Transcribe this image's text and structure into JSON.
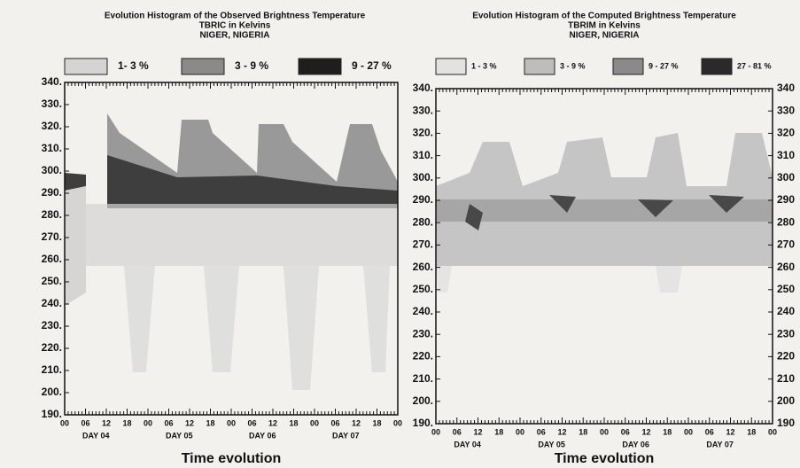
{
  "chart_data": [
    {
      "type": "histogram2d",
      "title": "Evolution Histogram of the Observed Brightness Temperature",
      "subtitle": "TBRIC in Kelvins",
      "location": "NIGER, NIGERIA",
      "legend": [
        {
          "label": "1- 3 %",
          "color": "#d4d4d4"
        },
        {
          "label": "3 - 9 %",
          "color": "#8a8a8a"
        },
        {
          "label": "9 - 27 %",
          "color": "#1e1e1e"
        }
      ],
      "categories": [
        "00",
        "06",
        "12",
        "18",
        "00",
        "06",
        "12",
        "18",
        "00",
        "06",
        "12",
        "18",
        "00",
        "06",
        "12",
        "18",
        "00"
      ],
      "day_labels": [
        "DAY 04",
        "DAY 05",
        "DAY 06",
        "DAY 07"
      ],
      "xlabel": "Time evolution",
      "ylim": [
        190,
        340
      ],
      "yticks": [
        {
          "value": 190,
          "label": "190."
        },
        {
          "value": 200,
          "label": "200."
        },
        {
          "value": 210,
          "label": "210."
        },
        {
          "value": 220,
          "label": "220."
        },
        {
          "value": 230,
          "label": "230."
        },
        {
          "value": 240,
          "label": "240."
        },
        {
          "value": 250,
          "label": "250."
        },
        {
          "value": 260,
          "label": "260."
        },
        {
          "value": 270,
          "label": "270."
        },
        {
          "value": 280,
          "label": "280."
        },
        {
          "value": 290,
          "label": "290."
        },
        {
          "value": 300,
          "label": "300."
        },
        {
          "value": 310,
          "label": "310."
        },
        {
          "value": 320,
          "label": "320."
        },
        {
          "value": 330,
          "label": "330."
        },
        {
          "value": 340,
          "label": "340."
        }
      ]
    },
    {
      "type": "histogram2d",
      "title": "Evolution Histogram of the Computed Brightness Temperature",
      "subtitle": "TBRIM in Kelvins",
      "location": "NIGER, NIGERIA",
      "legend": [
        {
          "label": "1 - 3 %",
          "color": "#e2e2e2"
        },
        {
          "label": "3 - 9 %",
          "color": "#bdbdbd"
        },
        {
          "label": "9 - 27 %",
          "color": "#8a8a8a"
        },
        {
          "label": "27 - 81 %",
          "color": "#2a2a2a"
        }
      ],
      "categories": [
        "00",
        "06",
        "12",
        "18",
        "00",
        "06",
        "12",
        "18",
        "00",
        "06",
        "12",
        "18",
        "00",
        "06",
        "12",
        "18",
        "00"
      ],
      "day_labels": [
        "DAY 04",
        "DAY 05",
        "DAY 06",
        "DAY 07"
      ],
      "xlabel": "Time evolution",
      "ylim": [
        190,
        340
      ],
      "yticks": [
        {
          "value": 190,
          "label": "190."
        },
        {
          "value": 200,
          "label": "200."
        },
        {
          "value": 210,
          "label": "210."
        },
        {
          "value": 220,
          "label": "220."
        },
        {
          "value": 230,
          "label": "230."
        },
        {
          "value": 240,
          "label": "240."
        },
        {
          "value": 250,
          "label": "250."
        },
        {
          "value": 260,
          "label": "260."
        },
        {
          "value": 270,
          "label": "270."
        },
        {
          "value": 280,
          "label": "280."
        },
        {
          "value": 290,
          "label": "290."
        },
        {
          "value": 300,
          "label": "300."
        },
        {
          "value": 310,
          "label": "310."
        },
        {
          "value": 320,
          "label": "320."
        },
        {
          "value": 330,
          "label": "330."
        },
        {
          "value": 340,
          "label": "340."
        }
      ],
      "y2lim": [
        190,
        340
      ],
      "y2ticks": [
        190,
        200,
        210,
        220,
        230,
        240,
        250,
        260,
        270,
        280,
        290,
        300,
        310,
        320,
        330,
        340
      ]
    }
  ]
}
